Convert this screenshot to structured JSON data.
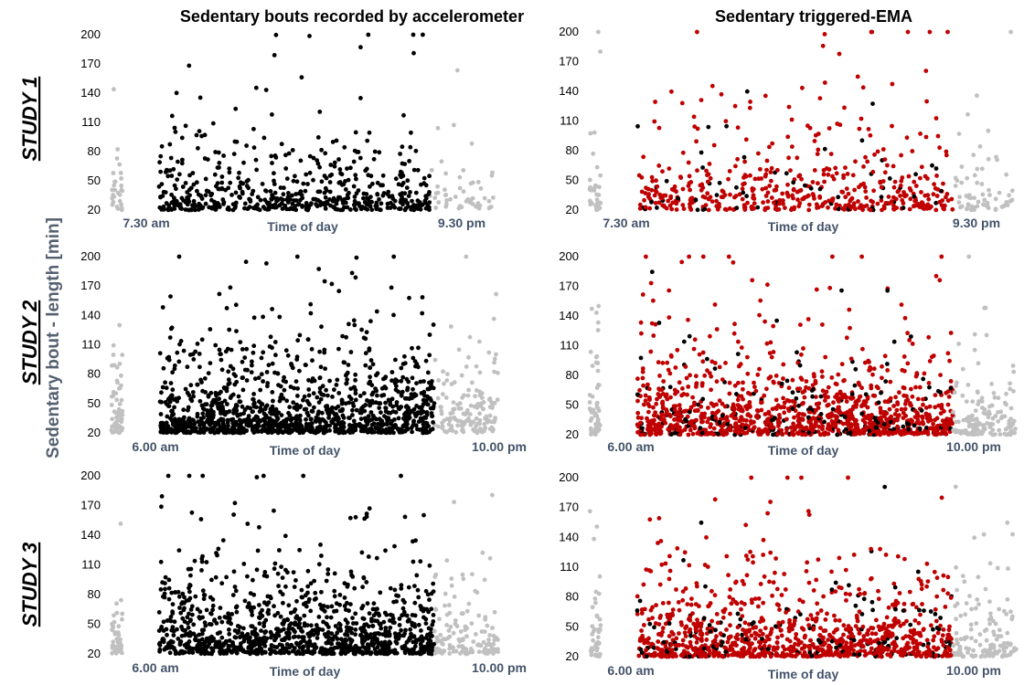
{
  "figure": {
    "column_titles": [
      "Sedentary bouts recorded by accelerometer",
      "Sedentary triggered-EMA"
    ],
    "row_titles": [
      "STUDY 1",
      "STUDY 2",
      "STUDY 3"
    ],
    "y_label": "Sedentary bout - length [min]",
    "x_axis_label": "Time of day",
    "colors": {
      "inside_window": "#000000",
      "outside_window": "#c0c0c0",
      "ema_answered": "#c00000",
      "ema_unanswered": "#000000"
    }
  },
  "chart_data": [
    {
      "type": "scatter",
      "panel": "study1-accelerometer",
      "row_title": "STUDY 1",
      "title": "Sedentary bouts recorded by accelerometer",
      "xlabel": "Time of day",
      "ylabel": "Sedentary bout - length [min]",
      "ylim": [
        20,
        200
      ],
      "yticks": [
        20,
        50,
        80,
        110,
        140,
        170,
        200
      ],
      "grid": false,
      "window_labels": [
        "7.30 am",
        "9.30 pm"
      ],
      "point_count": 640,
      "series": [
        {
          "color": "#000000"
        },
        {
          "color": "#c0c0c0"
        }
      ]
    },
    {
      "type": "scatter",
      "panel": "study1-ema",
      "row_title": "STUDY 1",
      "title": "Sedentary triggered-EMA",
      "xlabel": "Time of day",
      "ylabel": "Sedentary bout - length [min]",
      "ylim": [
        20,
        200
      ],
      "yticks": [
        20,
        50,
        80,
        110,
        140,
        170,
        200
      ],
      "grid": false,
      "window_labels": [
        "7.30 am",
        "9.30 pm"
      ],
      "point_count": 640,
      "series": [
        {
          "color": "#c00000"
        },
        {
          "color": "#000000"
        },
        {
          "color": "#c0c0c0"
        }
      ]
    },
    {
      "type": "scatter",
      "panel": "study2-accelerometer",
      "row_title": "STUDY 2",
      "title": "Sedentary bouts recorded by accelerometer",
      "xlabel": "Time of day",
      "ylabel": "Sedentary bout - length [min]",
      "ylim": [
        20,
        200
      ],
      "yticks": [
        20,
        50,
        80,
        110,
        140,
        170,
        200
      ],
      "grid": false,
      "window_labels": [
        "6.00 am",
        "10.00 pm"
      ],
      "point_count": 1450,
      "series": [
        {
          "color": "#000000"
        },
        {
          "color": "#c0c0c0"
        }
      ]
    },
    {
      "type": "scatter",
      "panel": "study2-ema",
      "row_title": "STUDY 2",
      "title": "Sedentary triggered-EMA",
      "xlabel": "Time of day",
      "ylabel": "Sedentary bout - length [min]",
      "ylim": [
        20,
        200
      ],
      "yticks": [
        20,
        50,
        80,
        110,
        140,
        170,
        200
      ],
      "grid": false,
      "window_labels": [
        "6.00 am",
        "10.00 pm"
      ],
      "point_count": 1450,
      "series": [
        {
          "color": "#c00000"
        },
        {
          "color": "#000000"
        },
        {
          "color": "#c0c0c0"
        }
      ]
    },
    {
      "type": "scatter",
      "panel": "study3-accelerometer",
      "row_title": "STUDY 3",
      "title": "Sedentary bouts recorded by accelerometer",
      "xlabel": "Time of day",
      "ylabel": "Sedentary bout - length [min]",
      "ylim": [
        20,
        200
      ],
      "yticks": [
        20,
        50,
        80,
        110,
        140,
        170,
        200
      ],
      "grid": false,
      "window_labels": [
        "6.00 am",
        "10.00 pm"
      ],
      "point_count": 1300,
      "series": [
        {
          "color": "#000000"
        },
        {
          "color": "#c0c0c0"
        }
      ]
    },
    {
      "type": "scatter",
      "panel": "study3-ema",
      "row_title": "STUDY 3",
      "title": "Sedentary triggered-EMA",
      "xlabel": "Time of day",
      "ylabel": "Sedentary bout - length [min]",
      "ylim": [
        20,
        200
      ],
      "yticks": [
        20,
        50,
        80,
        110,
        140,
        170,
        200
      ],
      "grid": false,
      "window_labels": [
        "6.00 am",
        "10.00 pm"
      ],
      "point_count": 1300,
      "series": [
        {
          "color": "#c00000"
        },
        {
          "color": "#000000"
        },
        {
          "color": "#c0c0c0"
        }
      ]
    }
  ]
}
